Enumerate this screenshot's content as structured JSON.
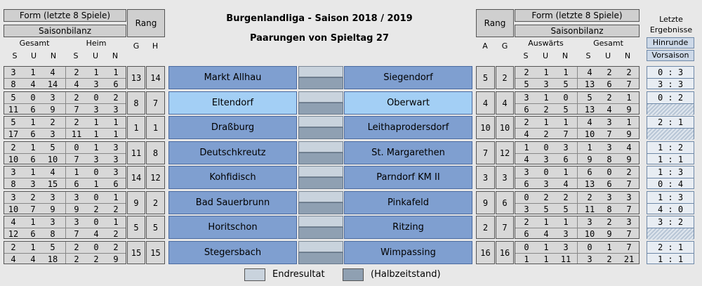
{
  "header": {
    "title": "Burgenlandliga  -  Saison 2018 / 2019",
    "subtitle": "Paarungen von Spieltag 27",
    "left_form": "Form (letzte 8 Spiele)",
    "left_bilanz": "Saisonbilanz",
    "left_rang": "Rang",
    "right_form": "Form (letzte 8 Spiele)",
    "right_bilanz": "Saisonbilanz",
    "right_rang": "Rang",
    "last_results": "Letzte\nErgebnisse",
    "last_results_1": "Letzte",
    "last_results_2": "Ergebnisse",
    "hinrunde": "Hinrunde",
    "vorsaison": "Vorsaison",
    "left_gesamt": "Gesamt",
    "left_heim": "Heim",
    "right_auswaerts": "Auswärts",
    "right_gesamt": "Gesamt",
    "left_cols": [
      "S",
      "U",
      "N",
      "S",
      "U",
      "N"
    ],
    "left_gh": [
      "G",
      "H"
    ],
    "right_ag": [
      "A",
      "G"
    ],
    "right_cols": [
      "S",
      "U",
      "N",
      "S",
      "U",
      "N"
    ]
  },
  "matches": [
    {
      "home": "Markt Allhau",
      "away": "Siegendorf",
      "highlight": false,
      "home_form": [
        "3",
        "1",
        "4",
        "2",
        "1",
        "1"
      ],
      "home_bilanz": [
        "8",
        "4",
        "14",
        "4",
        "3",
        "6"
      ],
      "home_g": "13",
      "home_h": "14",
      "away_a": "5",
      "away_g": "2",
      "away_form": [
        "2",
        "1",
        "1",
        "4",
        "2",
        "2"
      ],
      "away_bilanz": [
        "5",
        "3",
        "5",
        "13",
        "6",
        "7"
      ],
      "hin": "0 : 3",
      "vor": "3 : 3"
    },
    {
      "home": "Eltendorf",
      "away": "Oberwart",
      "highlight": true,
      "home_form": [
        "5",
        "0",
        "3",
        "2",
        "0",
        "2"
      ],
      "home_bilanz": [
        "11",
        "6",
        "9",
        "7",
        "3",
        "3"
      ],
      "home_g": "8",
      "home_h": "7",
      "away_a": "4",
      "away_g": "4",
      "away_form": [
        "3",
        "1",
        "0",
        "5",
        "2",
        "1"
      ],
      "away_bilanz": [
        "6",
        "2",
        "5",
        "13",
        "4",
        "9"
      ],
      "hin": "0 : 2",
      "vor": ""
    },
    {
      "home": "Draßburg",
      "away": "Leithaprodersdorf",
      "highlight": false,
      "home_form": [
        "5",
        "1",
        "2",
        "2",
        "1",
        "1"
      ],
      "home_bilanz": [
        "17",
        "6",
        "3",
        "11",
        "1",
        "1"
      ],
      "home_g": "1",
      "home_h": "1",
      "away_a": "10",
      "away_g": "10",
      "away_form": [
        "2",
        "1",
        "1",
        "4",
        "3",
        "1"
      ],
      "away_bilanz": [
        "4",
        "2",
        "7",
        "10",
        "7",
        "9"
      ],
      "hin": "2 : 1",
      "vor": ""
    },
    {
      "home": "Deutschkreutz",
      "away": "St. Margarethen",
      "highlight": false,
      "home_form": [
        "2",
        "1",
        "5",
        "0",
        "1",
        "3"
      ],
      "home_bilanz": [
        "10",
        "6",
        "10",
        "7",
        "3",
        "3"
      ],
      "home_g": "11",
      "home_h": "8",
      "away_a": "7",
      "away_g": "12",
      "away_form": [
        "1",
        "0",
        "3",
        "1",
        "3",
        "4"
      ],
      "away_bilanz": [
        "4",
        "3",
        "6",
        "9",
        "8",
        "9"
      ],
      "hin": "1 : 2",
      "vor": "1 : 1"
    },
    {
      "home": "Kohfidisch",
      "away": "Parndorf KM II",
      "highlight": false,
      "home_form": [
        "3",
        "1",
        "4",
        "1",
        "0",
        "3"
      ],
      "home_bilanz": [
        "8",
        "3",
        "15",
        "6",
        "1",
        "6"
      ],
      "home_g": "14",
      "home_h": "12",
      "away_a": "3",
      "away_g": "3",
      "away_form": [
        "3",
        "0",
        "1",
        "6",
        "0",
        "2"
      ],
      "away_bilanz": [
        "6",
        "3",
        "4",
        "13",
        "6",
        "7"
      ],
      "hin": "1 : 3",
      "vor": "0 : 4"
    },
    {
      "home": "Bad Sauerbrunn",
      "away": "Pinkafeld",
      "highlight": false,
      "home_form": [
        "3",
        "2",
        "3",
        "3",
        "0",
        "1"
      ],
      "home_bilanz": [
        "10",
        "7",
        "9",
        "9",
        "2",
        "2"
      ],
      "home_g": "9",
      "home_h": "2",
      "away_a": "9",
      "away_g": "6",
      "away_form": [
        "0",
        "2",
        "2",
        "2",
        "3",
        "3"
      ],
      "away_bilanz": [
        "3",
        "5",
        "5",
        "11",
        "8",
        "7"
      ],
      "hin": "1 : 3",
      "vor": "4 : 0"
    },
    {
      "home": "Horitschon",
      "away": "Ritzing",
      "highlight": false,
      "home_form": [
        "4",
        "1",
        "3",
        "3",
        "0",
        "1"
      ],
      "home_bilanz": [
        "12",
        "6",
        "8",
        "7",
        "4",
        "2"
      ],
      "home_g": "5",
      "home_h": "5",
      "away_a": "2",
      "away_g": "7",
      "away_form": [
        "2",
        "1",
        "1",
        "3",
        "2",
        "3"
      ],
      "away_bilanz": [
        "6",
        "4",
        "3",
        "10",
        "9",
        "7"
      ],
      "hin": "3 : 2",
      "vor": ""
    },
    {
      "home": "Stegersbach",
      "away": "Wimpassing",
      "highlight": false,
      "home_form": [
        "2",
        "1",
        "5",
        "2",
        "0",
        "2"
      ],
      "home_bilanz": [
        "4",
        "4",
        "18",
        "2",
        "2",
        "9"
      ],
      "home_g": "15",
      "home_h": "15",
      "away_a": "16",
      "away_g": "16",
      "away_form": [
        "0",
        "1",
        "3",
        "0",
        "1",
        "7"
      ],
      "away_bilanz": [
        "1",
        "1",
        "11",
        "3",
        "2",
        "21"
      ],
      "hin": "2 : 1",
      "vor": "1 : 1"
    }
  ],
  "legend": {
    "endresultat": "Endresultat",
    "halbzeit": "(Halbzeitstand)"
  },
  "colors": {
    "team": "#7f9fd0",
    "team_highlight": "#a3cff5",
    "result_top": "#c9d3dd",
    "result_bottom": "#8fa0b2"
  }
}
